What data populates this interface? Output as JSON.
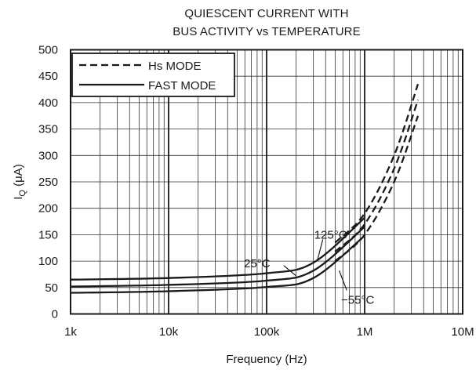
{
  "chart_data": {
    "type": "line",
    "title_line1": "QUIESCENT CURRENT WITH",
    "title_line2": "BUS ACTIVITY vs TEMPERATURE",
    "xlabel": "Frequency (Hz)",
    "ylabel_main": "I",
    "ylabel_sub": "Q",
    "ylabel_unit": " (μA)",
    "xscale": "log",
    "xlim": [
      1000,
      10000000
    ],
    "ylim": [
      0,
      500
    ],
    "grid": true,
    "x_ticks": [
      {
        "value": 1000,
        "label": "1k"
      },
      {
        "value": 10000,
        "label": "10k"
      },
      {
        "value": 100000,
        "label": "100k"
      },
      {
        "value": 1000000,
        "label": "1M"
      },
      {
        "value": 10000000,
        "label": "10M"
      }
    ],
    "y_ticks": [
      0,
      50,
      100,
      150,
      200,
      250,
      300,
      350,
      400,
      450,
      500
    ],
    "legend": {
      "placement": "top-left",
      "entries": [
        {
          "label": "Hs MODE",
          "style": "dashed"
        },
        {
          "label": "FAST MODE",
          "style": "solid"
        }
      ]
    },
    "series": [
      {
        "mode": "FAST MODE",
        "temperature": "125°C",
        "style": "solid",
        "x": [
          1000,
          10000,
          100000,
          300000,
          1000000
        ],
        "y": [
          65,
          68,
          77,
          97,
          182
        ]
      },
      {
        "mode": "FAST MODE",
        "temperature": "25°C",
        "style": "solid",
        "x": [
          1000,
          10000,
          100000,
          300000,
          1000000
        ],
        "y": [
          52,
          55,
          63,
          82,
          165
        ]
      },
      {
        "mode": "FAST MODE",
        "temperature": "−55°C",
        "style": "solid",
        "x": [
          1000,
          10000,
          100000,
          300000,
          1000000
        ],
        "y": [
          40,
          43,
          51,
          68,
          148
        ]
      },
      {
        "mode": "Hs MODE",
        "temperature": "125°C",
        "style": "dashed",
        "x": [
          500000,
          1000000,
          2000000,
          3500000
        ],
        "y": [
          135,
          190,
          300,
          435
        ]
      },
      {
        "mode": "Hs MODE",
        "temperature": "25°C",
        "style": "dashed",
        "x": [
          500000,
          1000000,
          2000000,
          3500000
        ],
        "y": [
          118,
          170,
          275,
          405
        ]
      },
      {
        "mode": "Hs MODE",
        "temperature": "−55°C",
        "style": "dashed",
        "x": [
          500000,
          1000000,
          2000000,
          3500000
        ],
        "y": [
          100,
          150,
          250,
          375
        ]
      }
    ],
    "annotations": [
      {
        "text": "125°C",
        "x": 450000,
        "y": 150
      },
      {
        "text": "25°C",
        "x": 80000,
        "y": 96
      },
      {
        "text": "−55°C",
        "x": 850000,
        "y": 27
      }
    ]
  }
}
